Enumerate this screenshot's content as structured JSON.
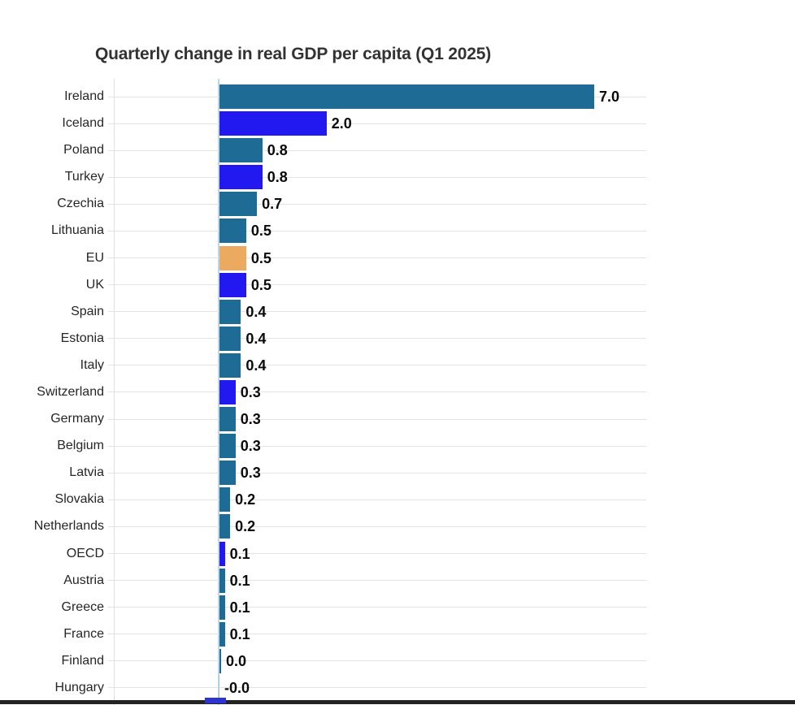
{
  "title": "Quarterly change in real GDP per capita (Q1 2025)",
  "chart_data": {
    "type": "bar",
    "orientation": "horizontal",
    "title": "Quarterly change in real GDP per capita (Q1 2025)",
    "xlabel": "",
    "ylabel": "",
    "xlim": [
      -2,
      8
    ],
    "legend": "none",
    "grid": "per-category horizontal gridlines",
    "rows": [
      {
        "label": "Ireland",
        "value": 7.0,
        "display": "7.0",
        "group": "member"
      },
      {
        "label": "Iceland",
        "value": 2.0,
        "display": "2.0",
        "group": "nonmember"
      },
      {
        "label": "Poland",
        "value": 0.8,
        "display": "0.8",
        "group": "member"
      },
      {
        "label": "Turkey",
        "value": 0.8,
        "display": "0.8",
        "group": "nonmember"
      },
      {
        "label": "Czechia",
        "value": 0.7,
        "display": "0.7",
        "group": "member"
      },
      {
        "label": "Lithuania",
        "value": 0.5,
        "display": "0.5",
        "group": "member"
      },
      {
        "label": "EU",
        "value": 0.5,
        "display": "0.5",
        "group": "eu"
      },
      {
        "label": "UK",
        "value": 0.5,
        "display": "0.5",
        "group": "nonmember"
      },
      {
        "label": "Spain",
        "value": 0.4,
        "display": "0.4",
        "group": "member"
      },
      {
        "label": "Estonia",
        "value": 0.4,
        "display": "0.4",
        "group": "member"
      },
      {
        "label": "Italy",
        "value": 0.4,
        "display": "0.4",
        "group": "member"
      },
      {
        "label": "Switzerland",
        "value": 0.3,
        "display": "0.3",
        "group": "nonmember"
      },
      {
        "label": "Germany",
        "value": 0.3,
        "display": "0.3",
        "group": "member"
      },
      {
        "label": "Belgium",
        "value": 0.3,
        "display": "0.3",
        "group": "member"
      },
      {
        "label": "Latvia",
        "value": 0.3,
        "display": "0.3",
        "group": "member"
      },
      {
        "label": "Slovakia",
        "value": 0.2,
        "display": "0.2",
        "group": "member"
      },
      {
        "label": "Netherlands",
        "value": 0.2,
        "display": "0.2",
        "group": "member"
      },
      {
        "label": "OECD",
        "value": 0.1,
        "display": "0.1",
        "group": "nonmember"
      },
      {
        "label": "Austria",
        "value": 0.1,
        "display": "0.1",
        "group": "member"
      },
      {
        "label": "Greece",
        "value": 0.1,
        "display": "0.1",
        "group": "member"
      },
      {
        "label": "France",
        "value": 0.1,
        "display": "0.1",
        "group": "member"
      },
      {
        "label": "Finland",
        "value": 0.0,
        "display": "0.0",
        "group": "member"
      },
      {
        "label": "Hungary",
        "value": -0.0,
        "display": "-0.0",
        "group": "member_zero"
      }
    ],
    "partial_next_row": {
      "group": "partial",
      "note": "next bar cut off at bottom edge, negative, at zero axis"
    }
  },
  "colors": {
    "member": "#1e6b96",
    "nonmember": "#2219f0",
    "eu": "#ecaa61",
    "member_zero": "#9fc6dd",
    "partial": "#2c35cf",
    "axis_line": "#bcd7e8",
    "plot_border": "#dfdfdf",
    "gridline": "#e3e3e3",
    "bottom_strip": "#232323",
    "title_text": "#333333",
    "category_text": "#262626",
    "value_text": "#0a0a0a"
  }
}
